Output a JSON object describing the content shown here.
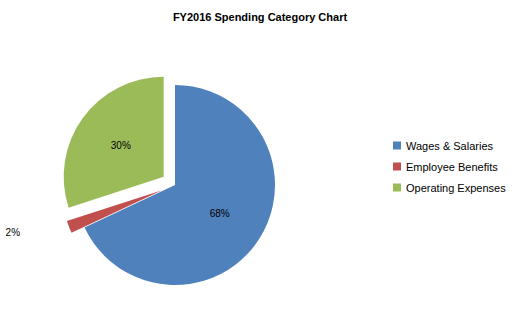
{
  "chart_data": {
    "type": "pie",
    "title": "FY2016 Spending Category Chart",
    "categories": [
      "Wages & Salaries",
      "Employee Benefits",
      "Operating Expenses"
    ],
    "values": [
      68,
      2,
      30
    ],
    "value_labels": [
      "68%",
      "2%",
      "30%"
    ],
    "colors": [
      "#4F81BD",
      "#C0504D",
      "#9BBB59"
    ],
    "data_labels": true,
    "legend": "right"
  }
}
